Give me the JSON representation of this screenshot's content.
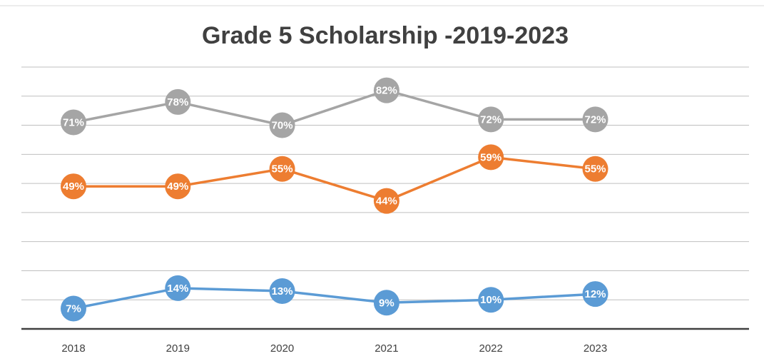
{
  "chart_data": {
    "type": "line",
    "title": "Grade 5 Scholarship -2019-2023",
    "categories": [
      "2018",
      "2019",
      "2020",
      "2021",
      "2022",
      "2023"
    ],
    "series": [
      {
        "color": "#a5a5a5",
        "values": [
          71,
          78,
          70,
          82,
          72,
          72
        ],
        "value_labels": [
          "71%",
          "78%",
          "70%",
          "82%",
          "72%",
          "72%"
        ]
      },
      {
        "color": "#ed7d31",
        "values": [
          49,
          49,
          55,
          44,
          59,
          55
        ],
        "value_labels": [
          "49%",
          "49%",
          "55%",
          "44%",
          "59%",
          "55%"
        ]
      },
      {
        "color": "#5b9bd5",
        "values": [
          7,
          14,
          13,
          9,
          10,
          12
        ],
        "value_labels": [
          "7%",
          "14%",
          "13%",
          "9%",
          "10%",
          "12%"
        ]
      }
    ],
    "ylim": [
      0,
      90
    ],
    "yticks": [
      0,
      10,
      20,
      30,
      40,
      50,
      60,
      70,
      80,
      90
    ],
    "grid": true
  }
}
